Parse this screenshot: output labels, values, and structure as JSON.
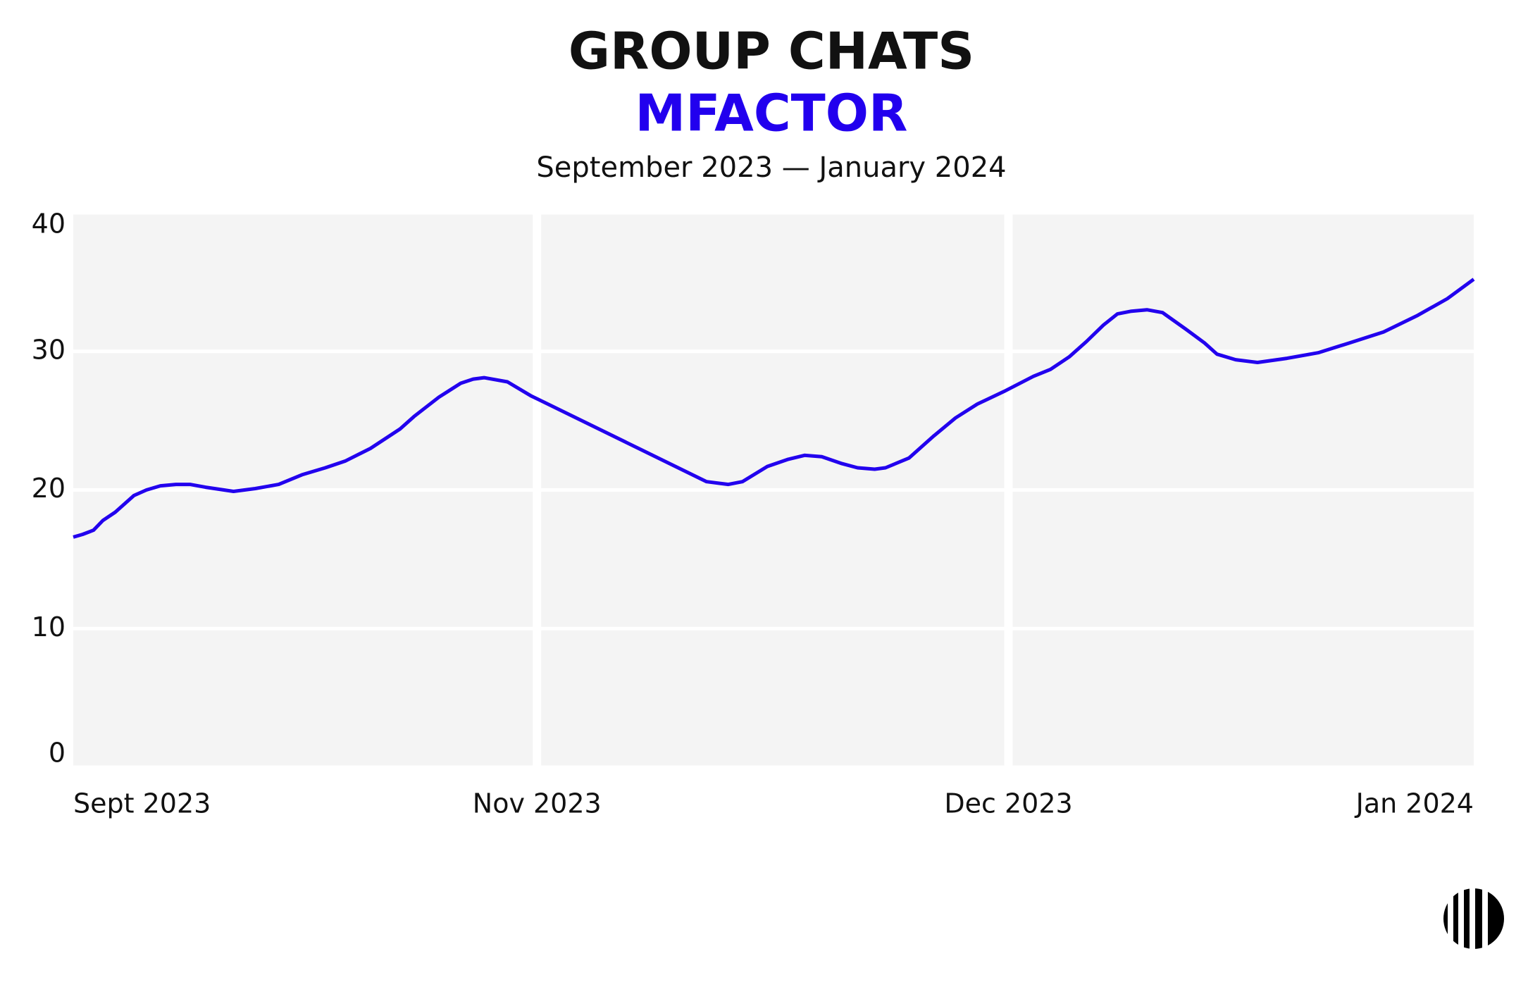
{
  "chart_data": {
    "type": "line",
    "title": "GROUP CHATS",
    "subtitle": "MFACTOR",
    "caption": "September 2023 — January 2024",
    "x": [
      0,
      0.6,
      1.3,
      1.9,
      2.7,
      3.9,
      4.7,
      5.6,
      6.6,
      7.5,
      8.5,
      10.3,
      11.7,
      13.2,
      14.7,
      16.2,
      17.5,
      19.1,
      21.0,
      21.9,
      23.5,
      24.9,
      25.7,
      26.4,
      27.9,
      29.4,
      40.7,
      42.1,
      43.0,
      44.6,
      45.9,
      47.0,
      48.1,
      49.4,
      50.4,
      51.5,
      52.2,
      53.7,
      55.3,
      56.7,
      58.1,
      59.8,
      61.7,
      62.8,
      64.0,
      65.1,
      66.2,
      67.1,
      68.0,
      69.0,
      70.0,
      71.5,
      72.7,
      73.5,
      74.7,
      76.1,
      78.0,
      80.0,
      82.0,
      84.2,
      86.4,
      88.3,
      90.0
    ],
    "series": [
      {
        "name": "MFACTOR",
        "color": "#2200ee",
        "values": [
          16.6,
          16.8,
          17.1,
          17.8,
          18.4,
          19.6,
          20.0,
          20.3,
          20.4,
          20.4,
          20.2,
          19.9,
          20.1,
          20.4,
          21.1,
          21.6,
          22.1,
          23.0,
          24.4,
          25.3,
          26.7,
          27.7,
          28.0,
          28.1,
          27.8,
          26.8,
          20.6,
          20.4,
          20.6,
          21.7,
          22.2,
          22.5,
          22.4,
          21.9,
          21.6,
          21.5,
          21.6,
          22.3,
          23.9,
          25.2,
          26.2,
          27.1,
          28.2,
          28.7,
          29.6,
          30.7,
          31.9,
          32.7,
          32.9,
          33.0,
          32.8,
          31.6,
          30.6,
          29.8,
          29.4,
          29.2,
          29.5,
          29.9,
          30.6,
          31.4,
          32.6,
          33.8,
          35.2
        ]
      }
    ],
    "xlim": [
      0,
      90
    ],
    "xticks": [
      {
        "value": 0,
        "label": "Sept 2023"
      },
      {
        "value": 29.8,
        "label": "Nov 2023"
      },
      {
        "value": 60.1,
        "label": "Dec 2023"
      },
      {
        "value": 90,
        "label": "Jan 2024"
      }
    ],
    "ylim": [
      0,
      40
    ],
    "yticks": [
      0,
      10,
      20,
      30,
      40
    ],
    "grid": true
  }
}
